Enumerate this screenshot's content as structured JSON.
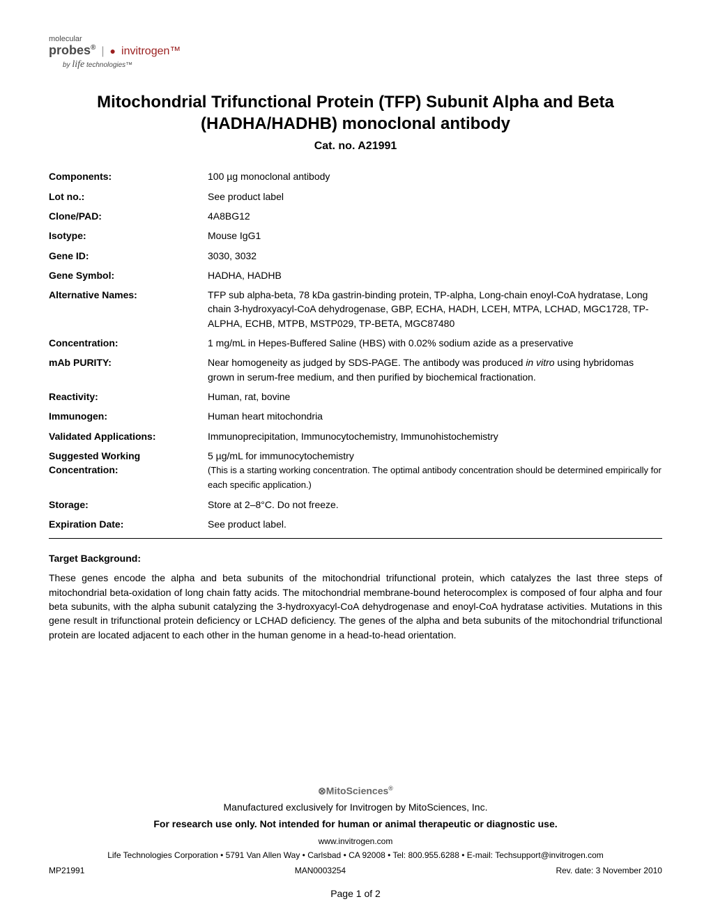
{
  "logo": {
    "molecular": "molecular",
    "probes": "probes",
    "invitrogen": "invitrogen",
    "by": "by",
    "life": "life",
    "technologies": "technologies™"
  },
  "title": "Mitochondrial Trifunctional Protein (TFP) Subunit Alpha and Beta (HADHA/HADHB) monoclonal antibody",
  "catNoLabel": "Cat. no. A21991",
  "specs": {
    "components": {
      "label": "Components:",
      "value": "100 µg monoclonal antibody"
    },
    "lotNo": {
      "label": "Lot no.:",
      "value": "See product label"
    },
    "clonePad": {
      "label": "Clone/PAD:",
      "value": "4A8BG12"
    },
    "isotype": {
      "label": "Isotype:",
      "value": "Mouse IgG1"
    },
    "geneId": {
      "label": "Gene ID:",
      "value": "3030, 3032"
    },
    "geneSymbol": {
      "label": "Gene Symbol:",
      "value": "HADHA, HADHB"
    },
    "altNames": {
      "label": "Alternative Names:",
      "value": "TFP sub alpha-beta, 78 kDa gastrin-binding protein, TP-alpha, Long-chain enoyl-CoA hydratase, Long chain 3-hydroxyacyl-CoA dehydrogenase, GBP, ECHA, HADH, LCEH, MTPA, LCHAD, MGC1728, TP-ALPHA, ECHB, MTPB, MSTP029, TP-BETA, MGC87480"
    },
    "concentration": {
      "label": "Concentration:",
      "value": "1 mg/mL in Hepes-Buffered Saline (HBS) with 0.02% sodium azide as a preservative"
    },
    "mabPurity": {
      "label": "mAb PURITY:",
      "valuePart1": "Near homogeneity as judged by SDS-PAGE. The antibody was produced ",
      "valueItalic": "in vitro",
      "valuePart2": " using hybridomas grown in serum-free medium, and then purified by biochemical fractionation."
    },
    "reactivity": {
      "label": "Reactivity:",
      "value": "Human, rat, bovine"
    },
    "immunogen": {
      "label": "Immunogen:",
      "value": "Human heart mitochondria"
    },
    "validatedApps": {
      "label": "Validated Applications:",
      "value": "Immunoprecipitation, Immunocytochemistry, Immunohistochemistry"
    },
    "workingConc": {
      "label1": "Suggested Working",
      "label2": "Concentration:",
      "value1": "5 µg/mL for immunocytochemistry",
      "value2": "(This is a starting working concentration. The optimal antibody concentration should be determined empirically for each specific application.)"
    },
    "storage": {
      "label": "Storage:",
      "value": "Store at 2–8°C. Do not freeze."
    },
    "expiration": {
      "label": "Expiration Date:",
      "value": "See product label."
    }
  },
  "targetBackground": {
    "header": "Target Background:",
    "body": "These genes encode the alpha and beta subunits of the mitochondrial trifunctional protein, which catalyzes the last three steps of mitochondrial beta-oxidation of long chain fatty acids. The mitochondrial membrane-bound heterocomplex is composed of four alpha and four beta subunits, with the alpha subunit catalyzing the 3-hydroxyacyl-CoA dehydrogenase and enoyl-CoA hydratase activities. Mutations in this gene result in trifunctional protein deficiency or LCHAD deficiency. The genes of the alpha and beta subunits of the mitochondrial trifunctional protein are located adjacent to each other in the human genome in a head-to-head orientation."
  },
  "footer": {
    "mitosciences": "MitoSciences",
    "manufactured": "Manufactured exclusively for Invitrogen by MitoSciences, Inc.",
    "researchOnly": "For research use only. Not intended for human or animal therapeutic or diagnostic use.",
    "website": "www.invitrogen.com",
    "contact": "Life Technologies Corporation • 5791 Van Allen Way • Carlsbad • CA  92008 • Tel: 800.955.6288 • E-mail: Techsupport@invitrogen.com",
    "docLeft": "MP21991",
    "docCenter": "MAN0003254",
    "docRight": "Rev. date: 3 November 2010",
    "pageNum": "Page 1 of 2"
  }
}
